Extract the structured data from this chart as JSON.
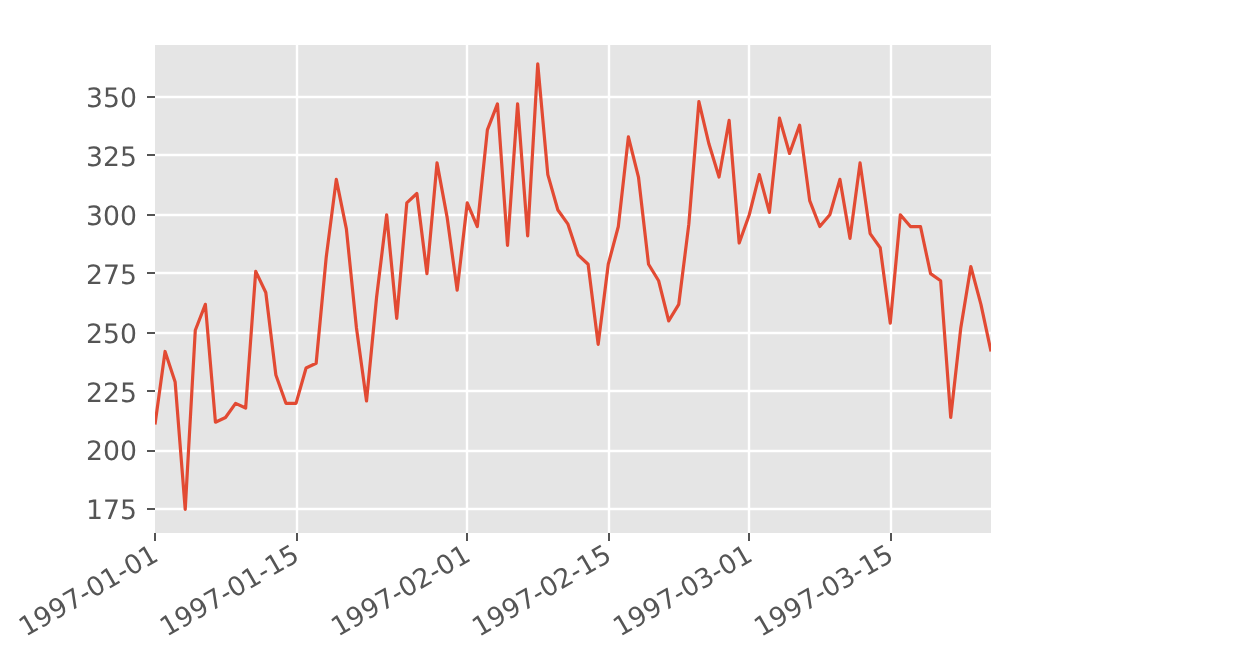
{
  "chart_data": {
    "type": "line",
    "x": [
      "1997-01-01",
      "1997-01-02",
      "1997-01-03",
      "1997-01-04",
      "1997-01-05",
      "1997-01-06",
      "1997-01-07",
      "1997-01-08",
      "1997-01-09",
      "1997-01-10",
      "1997-01-11",
      "1997-01-12",
      "1997-01-13",
      "1997-01-14",
      "1997-01-15",
      "1997-01-16",
      "1997-01-17",
      "1997-01-18",
      "1997-01-19",
      "1997-01-20",
      "1997-01-21",
      "1997-01-22",
      "1997-01-23",
      "1997-01-24",
      "1997-01-25",
      "1997-01-26",
      "1997-01-27",
      "1997-01-28",
      "1997-01-29",
      "1997-01-30",
      "1997-01-31",
      "1997-02-01",
      "1997-02-02",
      "1997-02-03",
      "1997-02-04",
      "1997-02-05",
      "1997-02-06",
      "1997-02-07",
      "1997-02-08",
      "1997-02-09",
      "1997-02-10",
      "1997-02-11",
      "1997-02-12",
      "1997-02-13",
      "1997-02-14",
      "1997-02-15",
      "1997-02-16",
      "1997-02-17",
      "1997-02-18",
      "1997-02-19",
      "1997-02-20",
      "1997-02-21",
      "1997-02-22",
      "1997-02-23",
      "1997-02-24",
      "1997-02-25",
      "1997-02-26",
      "1997-02-27",
      "1997-02-28",
      "1997-03-01",
      "1997-03-02",
      "1997-03-03",
      "1997-03-04",
      "1997-03-05",
      "1997-03-06",
      "1997-03-07",
      "1997-03-08",
      "1997-03-09",
      "1997-03-10",
      "1997-03-11",
      "1997-03-12",
      "1997-03-13",
      "1997-03-14",
      "1997-03-15",
      "1997-03-16",
      "1997-03-17",
      "1997-03-18",
      "1997-03-19",
      "1997-03-20",
      "1997-03-21",
      "1997-03-22",
      "1997-03-23",
      "1997-03-24",
      "1997-03-25"
    ],
    "series": [
      {
        "color": "#e24a33",
        "values": [
          211,
          242,
          229,
          175,
          251,
          262,
          212,
          214,
          220,
          218,
          276,
          267,
          232,
          220,
          220,
          235,
          237,
          282,
          315,
          294,
          252,
          221,
          265,
          300,
          256,
          305,
          309,
          275,
          322,
          299,
          268,
          305,
          295,
          336,
          347,
          287,
          347,
          291,
          364,
          317,
          302,
          296,
          283,
          279,
          245,
          279,
          295,
          333,
          316,
          279,
          272,
          255,
          262,
          296,
          348,
          330,
          316,
          340,
          288,
          300,
          317,
          301,
          341,
          326,
          338,
          306,
          295,
          300,
          315,
          290,
          322,
          292,
          286,
          254,
          300,
          295,
          295,
          275,
          272,
          214,
          252,
          278,
          262,
          242
        ]
      }
    ],
    "xlim": [
      "1997-01-01",
      "1997-03-25"
    ],
    "ylim": [
      165,
      372
    ],
    "xticks": [
      "1997-01-01",
      "1997-01-15",
      "1997-02-01",
      "1997-02-15",
      "1997-03-01",
      "1997-03-15"
    ],
    "yticks": [
      175,
      200,
      225,
      250,
      275,
      300,
      325,
      350
    ],
    "grid": true,
    "marker": "none",
    "line_style": "solid"
  }
}
